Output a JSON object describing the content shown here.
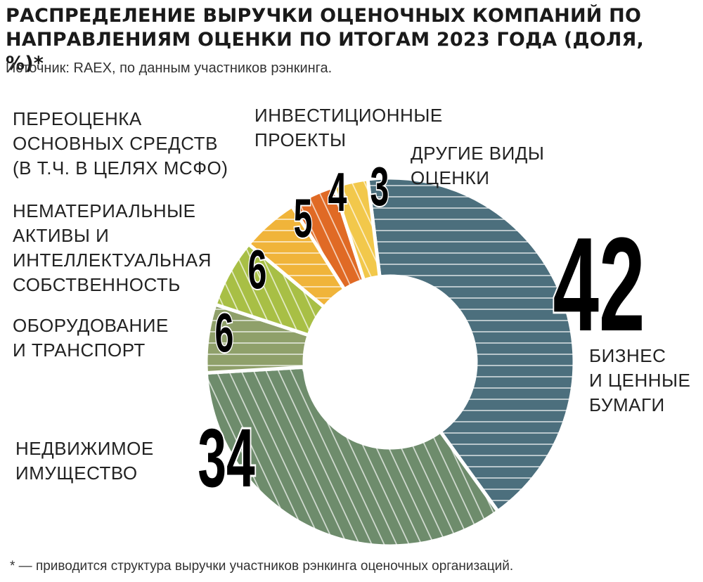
{
  "title": "РАСПРЕДЕЛЕНИЕ ВЫРУЧКИ ОЦЕНОЧНЫХ КОМПАНИЙ ПО НАПРАВЛЕНИЯМ ОЦЕНКИ ПО ИТОГАМ 2023 ГОДА (ДОЛЯ, %)*",
  "source": "Источник: RAEX, по данным участников рэнкинга.",
  "footnote": "* — приводится структура выручки участников рэнкинга оценочных организаций.",
  "chart_data": {
    "type": "pie",
    "donut": true,
    "unit": "%",
    "slices": [
      {
        "label": "БИЗНЕС И ЦЕННЫЕ БУМАГИ",
        "value": 42,
        "color": "#4c6f7d",
        "hatch": "horizontal"
      },
      {
        "label": "НЕДВИЖИМОЕ ИМУЩЕСТВО",
        "value": 34,
        "color": "#6e8c6c",
        "hatch": "diagonal"
      },
      {
        "label": "ОБОРУДОВАНИЕ И ТРАНСПОРТ",
        "value": 6,
        "color": "#8fa06a",
        "hatch": "horizontal"
      },
      {
        "label": "НЕМАТЕРИАЛЬНЫЕ АКТИВЫ И ИНТЕЛЛЕКТУАЛЬНАЯ СОБСТВЕННОСТЬ",
        "value": 6,
        "color": "#a8bf45",
        "hatch": "diagonal"
      },
      {
        "label": "ПЕРЕОЦЕНКА ОСНОВНЫХ СРЕДСТВ (В Т.Ч. В ЦЕЛЯХ МСФО)",
        "value": 5,
        "color": "#f0b43a",
        "hatch": "horizontal"
      },
      {
        "label": "ИНВЕСТИЦИОННЫЕ ПРОЕКТЫ",
        "value": 4,
        "color": "#e06a25",
        "hatch": "diagonal"
      },
      {
        "label": "ДРУГИЕ ВИДЫ ОЦЕНКИ",
        "value": 3,
        "color": "#f2c84b",
        "hatch": "diagonal"
      }
    ]
  },
  "labels": {
    "pereocenka": [
      "ПЕРЕОЦЕНКА",
      "ОСНОВНЫХ СРЕДСТВ",
      "(В Т.Ч. В ЦЕЛЯХ МСФО)"
    ],
    "invest": [
      "ИНВЕСТИЦИОННЫЕ",
      "ПРОЕКТЫ"
    ],
    "drugie": [
      "ДРУГИЕ ВИДЫ",
      "ОЦЕНКИ"
    ],
    "nemat": [
      "НЕМАТЕРИАЛЬНЫЕ",
      "АКТИВЫ И",
      "ИНТЕЛЛЕКТУАЛЬНАЯ",
      "СОБСТВЕННОСТЬ"
    ],
    "oborud": [
      "ОБОРУДОВАНИЕ",
      "И ТРАНСПОРТ"
    ],
    "nedv": [
      "НЕДВИЖИМОЕ",
      "ИМУЩЕСТВО"
    ],
    "biznes": [
      "БИЗНЕС",
      "И ЦЕННЫЕ",
      "БУМАГИ"
    ]
  }
}
